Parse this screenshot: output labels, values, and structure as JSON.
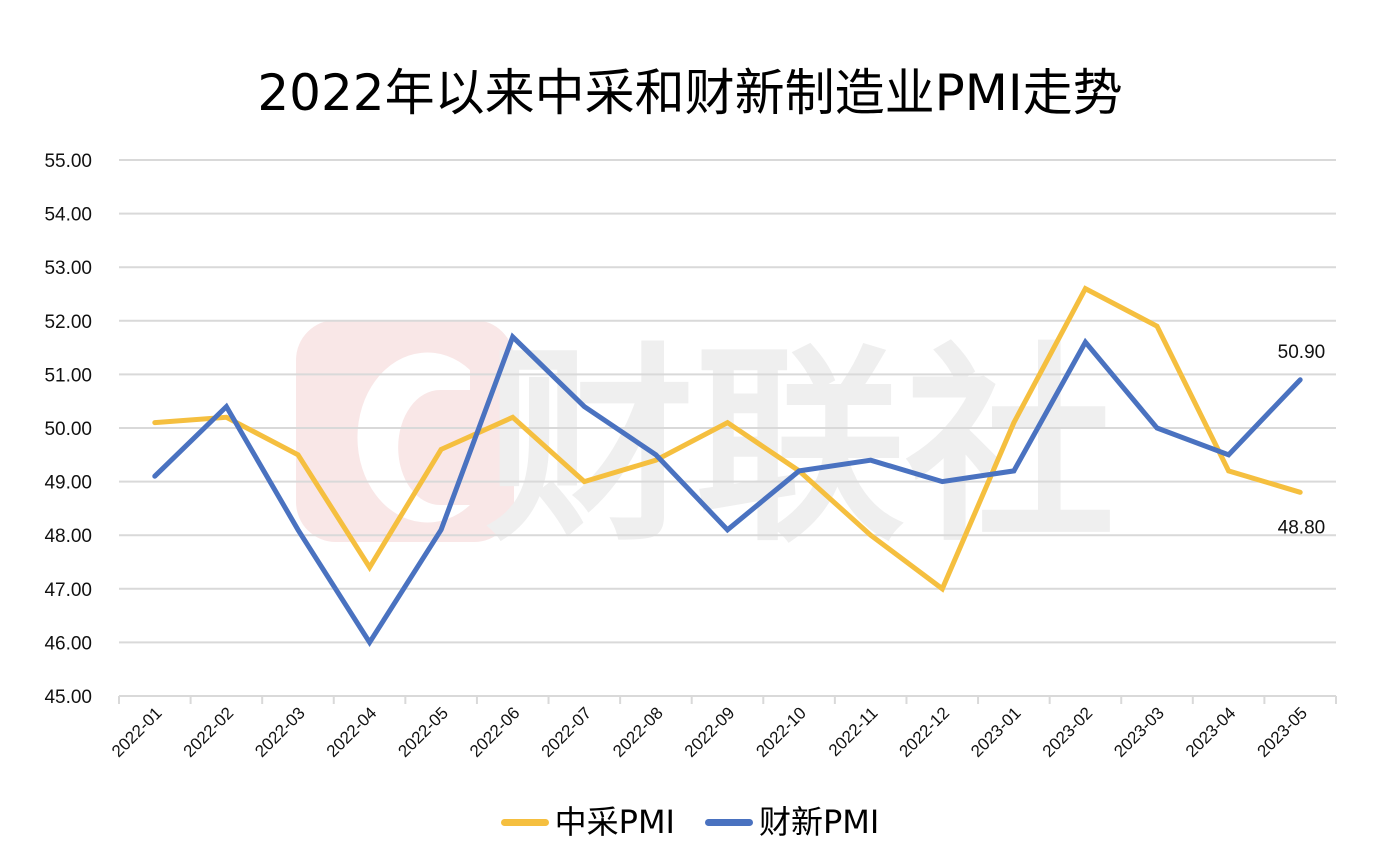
{
  "chart_data": {
    "type": "line",
    "title": "2022年以来中采和财新制造业PMI走势",
    "xlabel": "",
    "ylabel": "",
    "ylim": [
      45,
      55
    ],
    "yticks": [
      "55.00",
      "54.00",
      "53.00",
      "52.00",
      "51.00",
      "50.00",
      "49.00",
      "48.00",
      "47.00",
      "46.00",
      "45.00"
    ],
    "grid": true,
    "legend_position": "bottom",
    "categories": [
      "2022-01",
      "2022-02",
      "2022-03",
      "2022-04",
      "2022-05",
      "2022-06",
      "2022-07",
      "2022-08",
      "2022-09",
      "2022-10",
      "2022-11",
      "2022-12",
      "2023-01",
      "2023-02",
      "2023-03",
      "2023-04",
      "2023-05"
    ],
    "series": [
      {
        "name": "中采PMI",
        "color": "#F5BF3F",
        "values": [
          50.1,
          50.2,
          49.5,
          47.4,
          49.6,
          50.2,
          49.0,
          49.4,
          50.1,
          49.2,
          48.0,
          47.0,
          50.1,
          52.6,
          51.9,
          49.2,
          48.8
        ],
        "end_label": "48.80"
      },
      {
        "name": "财新PMI",
        "color": "#4A72C0",
        "values": [
          49.1,
          50.4,
          48.1,
          46.0,
          48.1,
          51.7,
          50.4,
          49.5,
          48.1,
          49.2,
          49.4,
          49.0,
          49.2,
          51.6,
          50.0,
          49.5,
          50.9
        ],
        "end_label": "50.90"
      }
    ],
    "annotations": [
      "50.90",
      "48.80"
    ],
    "watermark": "财联社"
  },
  "colors": {
    "grid": "#D9D9D9",
    "axis": "#D9D9D9",
    "watermark_logo": "#F9E7E7",
    "watermark_text": "#EFEFEF"
  }
}
